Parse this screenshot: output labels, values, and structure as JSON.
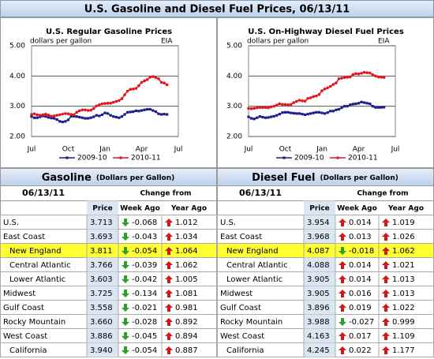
{
  "header": {
    "title": "U.S. Gasoline and Diesel Fuel Prices, 06/13/11"
  },
  "chart_data": [
    {
      "type": "line",
      "title": "U.S. Regular Gasoline Prices",
      "annotations": [
        "dollars per gallon",
        "EIA"
      ],
      "categories": [
        "Jul",
        null,
        null,
        null,
        null,
        null,
        null,
        null,
        null,
        null,
        null,
        null,
        null,
        "Oct",
        null,
        null,
        null,
        null,
        null,
        null,
        null,
        null,
        null,
        null,
        null,
        null,
        "Jan",
        null,
        null,
        null,
        null,
        null,
        null,
        null,
        null,
        null,
        null,
        null,
        null,
        "Apr",
        null,
        null,
        null,
        null,
        null,
        null,
        null,
        null,
        null,
        null,
        null,
        null,
        "Jul"
      ],
      "series": [
        {
          "name": "2009-10",
          "color": "#1c1c8c",
          "values": [
            2.66,
            2.62,
            2.62,
            2.65,
            2.68,
            2.66,
            2.63,
            2.61,
            2.6,
            2.56,
            2.5,
            2.48,
            2.5,
            2.55,
            2.67,
            2.67,
            2.66,
            2.64,
            2.62,
            2.6,
            2.6,
            2.62,
            2.65,
            2.7,
            2.68,
            2.72,
            2.78,
            2.76,
            2.7,
            2.66,
            2.64,
            2.62,
            2.66,
            2.73,
            2.8,
            2.81,
            2.82,
            2.85,
            2.84,
            2.86,
            2.88,
            2.9,
            2.9,
            2.86,
            2.82,
            2.75,
            2.73,
            2.74,
            2.73,
            null,
            null,
            null,
            null
          ]
        },
        {
          "name": "2010-11",
          "color": "#e3141c",
          "values": [
            2.73,
            2.75,
            2.72,
            2.7,
            2.72,
            2.74,
            2.71,
            2.67,
            2.68,
            2.7,
            2.72,
            2.74,
            2.76,
            2.75,
            2.73,
            2.72,
            2.8,
            2.85,
            2.88,
            2.88,
            2.86,
            2.87,
            2.92,
            3.01,
            3.05,
            3.08,
            3.09,
            3.1,
            3.1,
            3.13,
            3.16,
            3.19,
            3.25,
            3.38,
            3.5,
            3.56,
            3.57,
            3.59,
            3.68,
            3.79,
            3.84,
            3.88,
            3.96,
            3.98,
            3.95,
            3.91,
            3.79,
            3.77,
            3.71,
            null,
            null,
            null,
            null
          ]
        }
      ],
      "ylim": [
        2,
        5
      ],
      "yticks": [
        {
          "value": 2,
          "label": "2.00"
        },
        {
          "value": 3,
          "label": "3.00"
        },
        {
          "value": 4,
          "label": "4.00"
        },
        {
          "value": 5,
          "label": "5.00"
        }
      ],
      "grid": true
    },
    {
      "type": "line",
      "title": "U.S. On-Highway Diesel Fuel Prices",
      "annotations": [
        "dollars per gallon",
        "EIA"
      ],
      "categories": [
        "Jul",
        null,
        null,
        null,
        null,
        null,
        null,
        null,
        null,
        null,
        null,
        null,
        null,
        "Oct",
        null,
        null,
        null,
        null,
        null,
        null,
        null,
        null,
        null,
        null,
        null,
        null,
        "Jan",
        null,
        null,
        null,
        null,
        null,
        null,
        null,
        null,
        null,
        null,
        null,
        null,
        "Apr",
        null,
        null,
        null,
        null,
        null,
        null,
        null,
        null,
        null,
        null,
        null,
        null,
        "Jul"
      ],
      "series": [
        {
          "name": "2009-10",
          "color": "#1c1c8c",
          "values": [
            2.65,
            2.6,
            2.58,
            2.62,
            2.66,
            2.64,
            2.62,
            2.63,
            2.65,
            2.67,
            2.7,
            2.74,
            2.79,
            2.8,
            2.8,
            2.78,
            2.77,
            2.76,
            2.76,
            2.74,
            2.72,
            2.74,
            2.76,
            2.78,
            2.8,
            2.8,
            2.78,
            2.76,
            2.79,
            2.84,
            2.84,
            2.88,
            2.9,
            2.95,
            3.0,
            3.0,
            3.05,
            3.07,
            3.08,
            3.1,
            3.14,
            3.12,
            3.1,
            3.08,
            3.0,
            2.96,
            2.96,
            2.96,
            2.97,
            null,
            null,
            null,
            null
          ]
        },
        {
          "name": "2010-11",
          "color": "#e3141c",
          "values": [
            2.93,
            2.92,
            2.93,
            2.95,
            2.96,
            2.96,
            2.96,
            2.95,
            2.98,
            3.0,
            3.04,
            3.08,
            3.06,
            3.06,
            3.05,
            3.06,
            3.12,
            3.16,
            3.2,
            3.18,
            3.17,
            3.26,
            3.28,
            3.32,
            3.34,
            3.39,
            3.51,
            3.57,
            3.61,
            3.66,
            3.72,
            3.77,
            3.91,
            3.93,
            3.95,
            3.96,
            3.97,
            4.05,
            4.08,
            4.07,
            4.09,
            4.12,
            4.11,
            4.1,
            4.04,
            4.0,
            3.97,
            3.96,
            3.95,
            null,
            null,
            null,
            null
          ]
        }
      ],
      "ylim": [
        2,
        5
      ],
      "yticks": [
        {
          "value": 2,
          "label": "2.00"
        },
        {
          "value": 3,
          "label": "3.00"
        },
        {
          "value": 4,
          "label": "4.00"
        },
        {
          "value": 5,
          "label": "5.00"
        }
      ],
      "grid": true
    }
  ],
  "tables": [
    {
      "title": "Gasoline",
      "subtitle": "(Dollars per Gallon)",
      "date": "06/13/11",
      "change_header": "Change from",
      "columns": [
        "Price",
        "Week Ago",
        "Year Ago"
      ],
      "highlight_row": 2,
      "indent": [
        2,
        3,
        4,
        9
      ],
      "rows": [
        [
          "U.S.",
          "3.713",
          "-0.068",
          "1.012"
        ],
        [
          "East Coast",
          "3.693",
          "-0.043",
          "1.034"
        ],
        [
          "New England",
          "3.811",
          "-0.054",
          "1.064"
        ],
        [
          "Central Atlantic",
          "3.766",
          "-0.039",
          "1.062"
        ],
        [
          "Lower Atlantic",
          "3.603",
          "-0.042",
          "1.005"
        ],
        [
          "Midwest",
          "3.725",
          "-0.134",
          "1.081"
        ],
        [
          "Gulf Coast",
          "3.558",
          "-0.021",
          "0.981"
        ],
        [
          "Rocky Mountain",
          "3.660",
          "-0.028",
          "0.892"
        ],
        [
          "West Coast",
          "3.886",
          "-0.045",
          "0.894"
        ],
        [
          "California",
          "3.940",
          "-0.054",
          "0.887"
        ]
      ]
    },
    {
      "title": "Diesel Fuel",
      "subtitle": "(Dollars per Gallon)",
      "date": "06/13/11",
      "change_header": "Change from",
      "columns": [
        "Price",
        "Week Ago",
        "Year Ago"
      ],
      "highlight_row": 2,
      "indent": [
        2,
        3,
        4,
        9
      ],
      "rows": [
        [
          "U.S.",
          "3.954",
          "0.014",
          "1.019"
        ],
        [
          "East Coast",
          "3.968",
          "0.013",
          "1.026"
        ],
        [
          "New England",
          "4.087",
          "-0.018",
          "1.062"
        ],
        [
          "Central Atlantic",
          "4.088",
          "0.014",
          "1.021"
        ],
        [
          "Lower Atlantic",
          "3.905",
          "0.014",
          "1.013"
        ],
        [
          "Midwest",
          "3.905",
          "0.016",
          "1.013"
        ],
        [
          "Gulf Coast",
          "3.896",
          "0.019",
          "1.022"
        ],
        [
          "Rocky Mountain",
          "3.988",
          "-0.027",
          "0.999"
        ],
        [
          "West Coast",
          "4.163",
          "0.017",
          "1.109"
        ],
        [
          "California",
          "4.245",
          "0.022",
          "1.177"
        ]
      ]
    }
  ]
}
